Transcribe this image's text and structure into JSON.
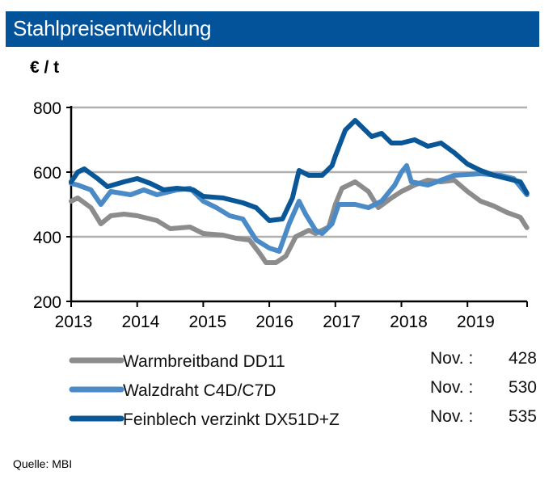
{
  "header": {
    "title": "Stahlpreisentwicklung"
  },
  "source": "Quelle: MBI",
  "chart_data": {
    "type": "line",
    "title": "Stahlpreisentwicklung",
    "ylabel": "€ / t",
    "xlabel": "",
    "ylim": [
      200,
      800
    ],
    "xlim": [
      2013,
      2019.9
    ],
    "yticks": [
      "200",
      "400",
      "600",
      "800"
    ],
    "xticks": [
      "2013",
      "2014",
      "2015",
      "2016",
      "2017",
      "2018",
      "2019"
    ],
    "grid": "horizontal",
    "legend_position": "bottom",
    "series": [
      {
        "name": "Warmbreitband DD11",
        "color": "#8c8c8c",
        "latest_label": "Nov. :",
        "latest_value": "428",
        "x": [
          2013.0,
          2013.1,
          2013.3,
          2013.45,
          2013.6,
          2013.8,
          2014.0,
          2014.3,
          2014.5,
          2014.8,
          2015.0,
          2015.3,
          2015.5,
          2015.7,
          2015.85,
          2015.95,
          2016.1,
          2016.25,
          2016.4,
          2016.6,
          2016.7,
          2016.9,
          2017.0,
          2017.1,
          2017.3,
          2017.5,
          2017.65,
          2017.85,
          2018.0,
          2018.2,
          2018.4,
          2018.6,
          2018.8,
          2019.0,
          2019.2,
          2019.4,
          2019.6,
          2019.8,
          2019.9
        ],
        "y": [
          510,
          520,
          490,
          440,
          465,
          470,
          465,
          450,
          425,
          430,
          410,
          405,
          395,
          390,
          350,
          320,
          320,
          340,
          400,
          420,
          410,
          430,
          500,
          550,
          570,
          540,
          490,
          520,
          540,
          560,
          575,
          570,
          575,
          540,
          510,
          495,
          475,
          460,
          428
        ]
      },
      {
        "name": "Walzdraht C4D/C7D",
        "color": "#4a8ac6",
        "latest_label": "Nov. :",
        "latest_value": "530",
        "x": [
          2013.0,
          2013.1,
          2013.3,
          2013.45,
          2013.6,
          2013.9,
          2014.1,
          2014.3,
          2014.6,
          2014.8,
          2015.0,
          2015.2,
          2015.4,
          2015.6,
          2015.8,
          2016.0,
          2016.15,
          2016.3,
          2016.45,
          2016.55,
          2016.7,
          2016.8,
          2016.95,
          2017.05,
          2017.3,
          2017.5,
          2017.7,
          2017.9,
          2018.0,
          2018.08,
          2018.15,
          2018.4,
          2018.6,
          2018.8,
          2019.2,
          2019.5,
          2019.7,
          2019.9
        ],
        "y": [
          565,
          560,
          545,
          500,
          540,
          530,
          545,
          530,
          545,
          550,
          510,
          490,
          465,
          455,
          390,
          365,
          355,
          440,
          510,
          470,
          420,
          410,
          440,
          500,
          500,
          490,
          510,
          560,
          600,
          620,
          570,
          560,
          575,
          590,
          595,
          590,
          580,
          530
        ]
      },
      {
        "name": "Feinblech verzinkt DX51D+Z",
        "color": "#0a5798",
        "latest_label": "Nov. :",
        "latest_value": "535",
        "x": [
          2013.0,
          2013.1,
          2013.2,
          2013.4,
          2013.55,
          2013.8,
          2014.0,
          2014.2,
          2014.4,
          2014.6,
          2014.85,
          2015.0,
          2015.3,
          2015.6,
          2015.8,
          2016.0,
          2016.2,
          2016.35,
          2016.45,
          2016.6,
          2016.8,
          2016.95,
          2017.0,
          2017.15,
          2017.3,
          2017.4,
          2017.55,
          2017.7,
          2017.85,
          2018.0,
          2018.2,
          2018.4,
          2018.6,
          2018.8,
          2019.0,
          2019.2,
          2019.4,
          2019.6,
          2019.8,
          2019.9
        ],
        "y": [
          570,
          600,
          610,
          580,
          555,
          570,
          580,
          565,
          545,
          550,
          545,
          525,
          520,
          505,
          490,
          450,
          455,
          520,
          605,
          590,
          590,
          620,
          650,
          730,
          760,
          740,
          710,
          720,
          690,
          690,
          700,
          680,
          690,
          660,
          625,
          605,
          590,
          580,
          570,
          535
        ]
      }
    ]
  }
}
